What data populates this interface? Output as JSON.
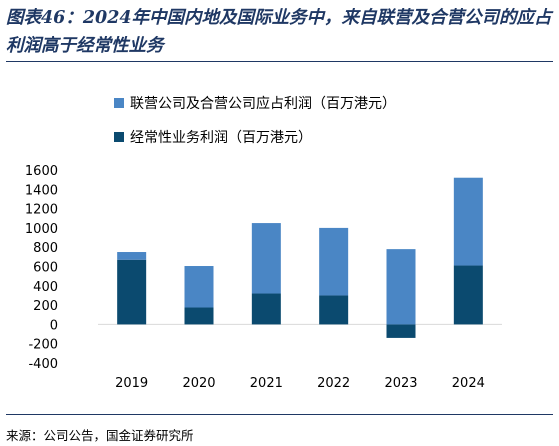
{
  "header": {
    "title": "图表46：2024年中国内地及国际业务中，来自联营及合营公司的应占利润高于经常性业务"
  },
  "footer": {
    "source": "来源：公司公告，国金证券研究所"
  },
  "colors": {
    "title": "#1f3864",
    "series_associates": "#4a86c5",
    "series_recurring": "#0b4a6f"
  },
  "chart_data": {
    "type": "bar",
    "stacked": true,
    "categories": [
      "2019",
      "2020",
      "2021",
      "2022",
      "2023",
      "2024"
    ],
    "series": [
      {
        "name": "联营公司及合营公司应占利润（百万港元）",
        "values": [
          80,
          430,
          730,
          700,
          780,
          910
        ]
      },
      {
        "name": "经常性业务利润（百万港元）",
        "values": [
          670,
          175,
          320,
          300,
          -140,
          610
        ]
      }
    ],
    "ylim": [
      -400,
      1600
    ],
    "yticks": [
      -400,
      -200,
      0,
      200,
      400,
      600,
      800,
      1000,
      1200,
      1400,
      1600
    ],
    "legend_position": "top-left",
    "grid": false
  }
}
